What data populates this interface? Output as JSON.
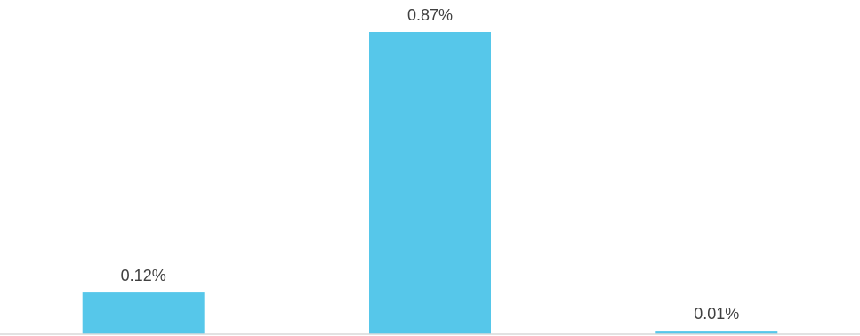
{
  "chart_data": {
    "type": "bar",
    "categories": [
      "",
      "",
      ""
    ],
    "values": [
      0.12,
      0.87,
      0.01
    ],
    "data_labels": [
      "0.12%",
      "0.87%",
      "0.01%"
    ],
    "title": "",
    "xlabel": "",
    "ylabel": "",
    "ylim": [
      0,
      0.87
    ],
    "grid": false,
    "legend": "none",
    "colors": {
      "bar": "#56C7EA",
      "baseline": "#D9D9D9",
      "label": "#404040",
      "background": "#FFFFFF"
    }
  }
}
